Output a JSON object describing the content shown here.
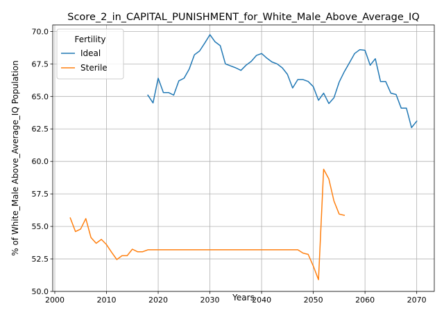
{
  "chart_data": {
    "type": "line",
    "title": "Score_2_in_CAPITAL_PUNISHMENT_for_White_Male_Above_Average_IQ",
    "xlabel": "Years",
    "ylabel": "% of White_Male Above_Average_IQ Population",
    "xlim": [
      1999.6,
      2073.4
    ],
    "ylim": [
      50.0,
      70.5
    ],
    "xticks": [
      2000,
      2010,
      2020,
      2030,
      2040,
      2050,
      2060,
      2070
    ],
    "xtick_labels": [
      "2000",
      "2010",
      "2020",
      "2030",
      "2040",
      "2050",
      "2060",
      "2070"
    ],
    "yticks": [
      50.0,
      52.5,
      55.0,
      57.5,
      60.0,
      62.5,
      65.0,
      67.5,
      70.0
    ],
    "ytick_labels": [
      "50.0",
      "52.5",
      "55.0",
      "57.5",
      "60.0",
      "62.5",
      "65.0",
      "67.5",
      "70.0"
    ],
    "grid": true,
    "legend": {
      "title": "Fertility",
      "placement": "upper-left"
    },
    "series": [
      {
        "name": "Ideal",
        "color": "#1f77b4",
        "x": [
          2018,
          2019,
          2020,
          2021,
          2022,
          2023,
          2024,
          2025,
          2026,
          2027,
          2028,
          2029,
          2030,
          2031,
          2032,
          2033,
          2034,
          2035,
          2036,
          2037,
          2038,
          2039,
          2040,
          2041,
          2042,
          2043,
          2044,
          2045,
          2046,
          2047,
          2048,
          2049,
          2050,
          2051,
          2052,
          2053,
          2054,
          2055,
          2056,
          2057,
          2058,
          2059,
          2060,
          2061,
          2062,
          2063,
          2064,
          2065,
          2066,
          2067,
          2068,
          2069,
          2070
        ],
        "y": [
          65.1,
          64.5,
          66.4,
          65.3,
          65.3,
          65.1,
          66.2,
          66.4,
          67.1,
          68.2,
          68.5,
          69.1,
          69.75,
          69.2,
          68.9,
          67.5,
          67.35,
          67.2,
          67.0,
          67.4,
          67.7,
          68.15,
          68.3,
          67.95,
          67.65,
          67.5,
          67.2,
          66.7,
          65.65,
          66.3,
          66.3,
          66.15,
          65.75,
          64.7,
          65.25,
          64.45,
          64.9,
          66.1,
          66.9,
          67.6,
          68.3,
          68.6,
          68.55,
          67.4,
          67.9,
          66.15,
          66.15,
          65.25,
          65.15,
          64.1,
          64.1,
          62.6,
          63.1
        ]
      },
      {
        "name": "Sterile",
        "color": "#ff7f0e",
        "x": [
          2003,
          2004,
          2005,
          2006,
          2007,
          2008,
          2009,
          2010,
          2011,
          2012,
          2013,
          2014,
          2015,
          2016,
          2017,
          2018,
          2019,
          2020,
          2021,
          2022,
          2023,
          2024,
          2025,
          2026,
          2027,
          2028,
          2029,
          2030,
          2031,
          2032,
          2033,
          2034,
          2035,
          2036,
          2037,
          2038,
          2039,
          2040,
          2041,
          2042,
          2043,
          2044,
          2045,
          2046,
          2047,
          2048,
          2049,
          2050,
          2051,
          2052,
          2053,
          2054,
          2055,
          2056
        ],
        "y": [
          55.65,
          54.6,
          54.8,
          55.6,
          54.15,
          53.7,
          54.0,
          53.6,
          53.0,
          52.45,
          52.75,
          52.75,
          53.25,
          53.05,
          53.05,
          53.2,
          53.2,
          53.2,
          53.2,
          53.2,
          53.2,
          53.2,
          53.2,
          53.2,
          53.2,
          53.2,
          53.2,
          53.2,
          53.2,
          53.2,
          53.2,
          53.2,
          53.2,
          53.2,
          53.2,
          53.2,
          53.2,
          53.2,
          53.2,
          53.2,
          53.2,
          53.2,
          53.2,
          53.2,
          53.2,
          52.95,
          52.85,
          51.95,
          50.9,
          59.4,
          58.65,
          56.95,
          55.95,
          55.85
        ]
      }
    ]
  }
}
